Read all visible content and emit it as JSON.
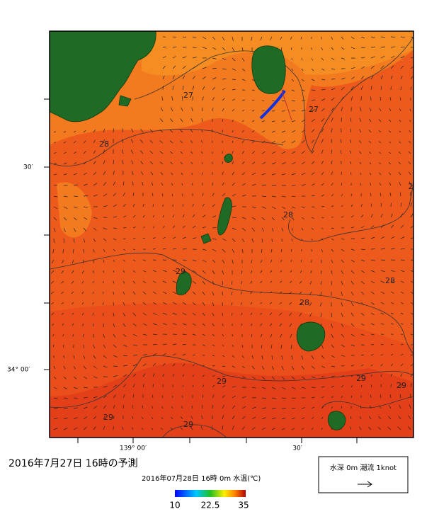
{
  "map": {
    "contour_labels": [
      "27",
      "27",
      "28",
      "28",
      "29",
      "28",
      "28",
      "29",
      "29",
      "29",
      "29",
      "29",
      "2"
    ],
    "lat_labels": [
      "30′",
      "34° 00′"
    ],
    "lon_labels": [
      "139° 00′",
      "30′"
    ],
    "title": "2016年7月27日  16時の予測",
    "subtitle": "2016年07月28日 16時 0m 水温(℃)",
    "colorbar_labels": [
      "10",
      "22.5",
      "35"
    ],
    "legend_text": "水深 0m 潮流 1knot"
  }
}
